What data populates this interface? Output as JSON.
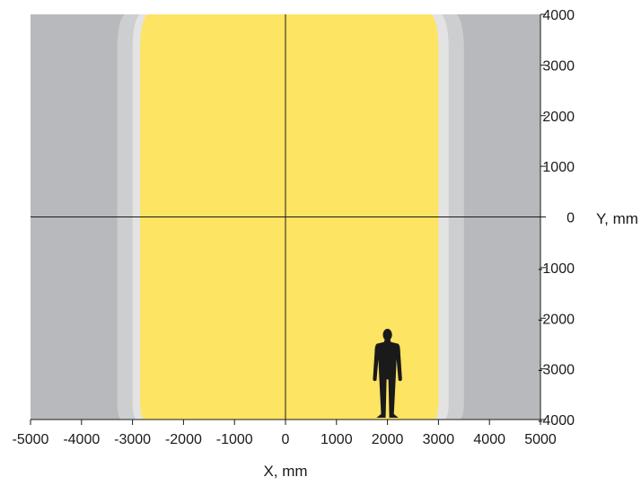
{
  "chart_data": {
    "type": "area",
    "title": "",
    "xlabel": "X, mm",
    "ylabel": "Y, mm",
    "xlim": [
      -5000,
      5000
    ],
    "ylim": [
      -4000,
      4000
    ],
    "x_ticks": [
      -5000,
      -4000,
      -3000,
      -2000,
      -1000,
      0,
      1000,
      2000,
      3000,
      4000,
      5000
    ],
    "y_ticks": [
      4000,
      3000,
      2000,
      1000,
      0,
      -1000,
      -2000,
      -3000,
      -4000
    ],
    "grid": false,
    "background_color": "#b8b9bc",
    "zones": [
      {
        "x_min": -3300,
        "x_max": 3500,
        "color": "#cdced0"
      },
      {
        "x_min": -3000,
        "x_max": 3200,
        "color": "#e3e3e4"
      },
      {
        "x_min": -2850,
        "x_max": 3000,
        "color": "#fde462"
      }
    ],
    "figure": {
      "x": 2000,
      "y": -4000,
      "height": 1800,
      "color": "#1a1a1a"
    }
  }
}
